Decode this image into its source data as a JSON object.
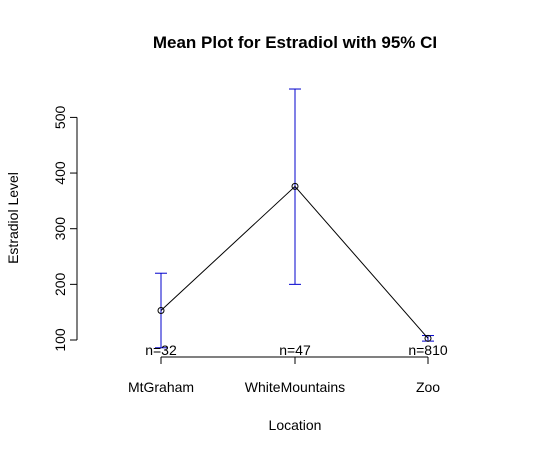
{
  "chart_data": {
    "type": "line",
    "title": "Mean Plot for Estradiol with 95% CI",
    "xlabel": "Location",
    "ylabel": "Estradiol Level",
    "categories": [
      "MtGraham",
      "WhiteMountains",
      "Zoo"
    ],
    "means": [
      153,
      376,
      103
    ],
    "ci_lower": [
      86,
      200,
      98
    ],
    "ci_upper": [
      220,
      551,
      108
    ],
    "n_labels": [
      "n=32",
      "n=47",
      "n=810"
    ],
    "y_ticks": [
      100,
      200,
      300,
      400,
      500
    ],
    "ylim": [
      70,
      570
    ],
    "grid": false,
    "colors": {
      "ci": "#0000cc",
      "line": "#000000"
    }
  }
}
